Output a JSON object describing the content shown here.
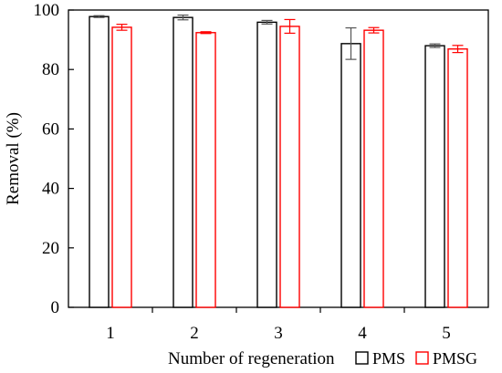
{
  "chart_data": {
    "type": "bar",
    "categories": [
      "1",
      "2",
      "3",
      "4",
      "5"
    ],
    "series": [
      {
        "name": "PMS",
        "color": "#000000",
        "values": [
          97.8,
          97.5,
          95.9,
          88.7,
          88.0
        ],
        "errors": [
          0.3,
          0.8,
          0.6,
          5.3,
          0.6
        ]
      },
      {
        "name": "PMSG",
        "color": "#ff0000",
        "values": [
          94.2,
          92.4,
          94.5,
          93.2,
          86.9
        ],
        "errors": [
          1.0,
          0.3,
          2.3,
          0.9,
          1.2
        ]
      }
    ],
    "xlabel": "Number of regeneration",
    "ylabel": "Removal (%)",
    "ylim": [
      0,
      100
    ],
    "yticks": [
      0,
      20,
      40,
      60,
      80,
      100
    ],
    "legend_position": "bottom-right",
    "grid": false
  }
}
